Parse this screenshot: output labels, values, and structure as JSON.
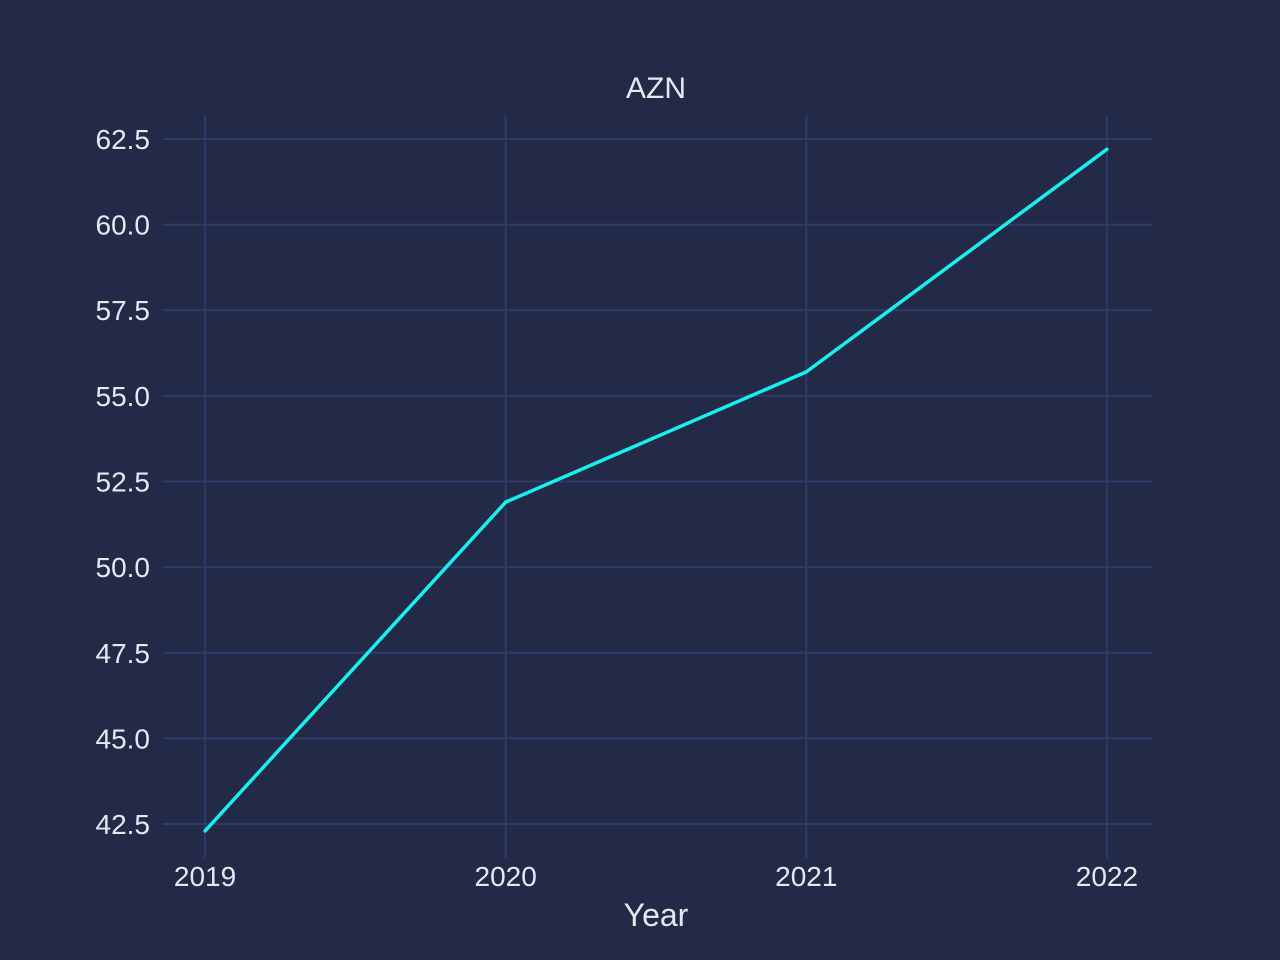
{
  "chart_data": {
    "type": "line",
    "title": "AZN",
    "xlabel": "Year",
    "ylabel": "",
    "x": [
      2019,
      2020,
      2021,
      2022
    ],
    "x_tick_labels": [
      "2019",
      "2020",
      "2021",
      "2022"
    ],
    "series": [
      {
        "values": [
          42.3,
          51.9,
          55.7,
          62.2
        ],
        "color": "#19f0ee"
      }
    ],
    "ylim": [
      41.8,
      63.2
    ],
    "xlim": [
      2018.9,
      2022.15
    ],
    "y_ticks": [
      42.5,
      45.0,
      47.5,
      50.0,
      52.5,
      55.0,
      57.5,
      60.0,
      62.5
    ],
    "y_tick_labels": [
      "42.5",
      "45.0",
      "47.5",
      "50.0",
      "52.5",
      "55.0",
      "57.5",
      "60.0",
      "62.5"
    ],
    "grid": true,
    "legend": "none",
    "colors": {
      "background": "#222a48",
      "grid": "#2f3a68",
      "text": "#e6e8f0",
      "line": "#19f0ee"
    }
  }
}
